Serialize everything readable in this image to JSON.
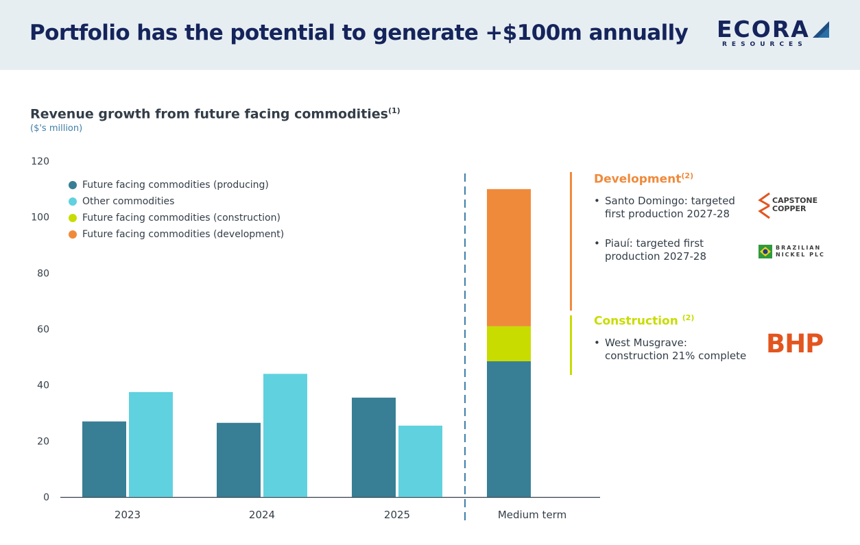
{
  "header": {
    "title": "Portfolio has the potential to generate +$100m annually",
    "logo_word": "ECORA",
    "logo_sub": "RESOURCES",
    "bg_color": "#e6eef2",
    "title_color": "#15245b"
  },
  "chart_data": {
    "type": "bar",
    "title": "Revenue growth from future facing commodities",
    "title_note": "(1)",
    "subtitle": "($'s million)",
    "categories": [
      "2023",
      "2024",
      "2025",
      "Medium term"
    ],
    "ylim": [
      0,
      120
    ],
    "yticks": [
      "0",
      "20",
      "40",
      "60",
      "80",
      "100",
      "120"
    ],
    "grid": false,
    "legend_position": "top-left",
    "series": [
      {
        "name": "Future facing commodities (producing)",
        "color": "#387f95",
        "values": [
          27,
          26.5,
          35.5,
          48.5
        ]
      },
      {
        "name": "Other commodities",
        "color": "#60d1df",
        "values": [
          37.5,
          44,
          25.5,
          null
        ]
      },
      {
        "name": "Future facing commodities (construction)",
        "color": "#c8dc00",
        "values": [
          null,
          null,
          null,
          12.5
        ]
      },
      {
        "name": "Future facing commodities (development)",
        "color": "#f08a3b",
        "values": [
          null,
          null,
          null,
          49
        ]
      }
    ],
    "layout_note": "2023-2025 grouped; Medium term stacked"
  },
  "panel": {
    "development": {
      "title": "Development",
      "note": "(2)",
      "color": "#f08a3b",
      "bullets": [
        {
          "line1": "Santo Domingo: targeted",
          "line2": "first production 2027-28"
        },
        {
          "line1": "Piauí: targeted first",
          "line2": "production 2027-28"
        }
      ]
    },
    "construction": {
      "title": "Construction",
      "note": "(2)",
      "color": "#c8dc00",
      "bullets": [
        {
          "line1": "West Musgrave:",
          "line2": "construction 21% complete"
        }
      ]
    },
    "bullet_char": "•"
  },
  "logos": {
    "capstone_line1": "CAPSTONE",
    "capstone_line2": "COPPER",
    "bnp_line1": "BRAZILIAN",
    "bnp_line2": "NICKEL PLC",
    "bhp": "BHP"
  }
}
